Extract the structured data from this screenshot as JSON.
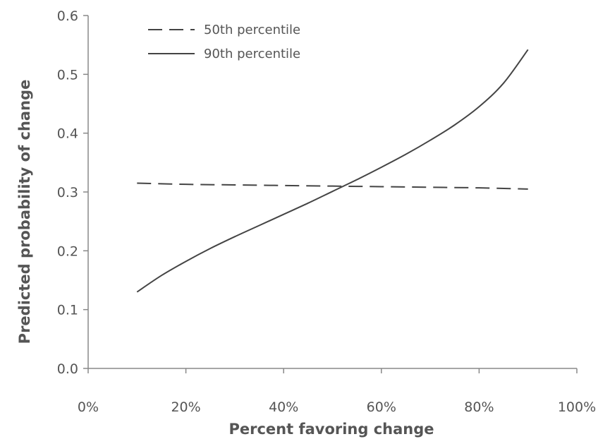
{
  "chart_data": {
    "type": "line",
    "title": "",
    "xlabel": "Percent favoring change",
    "ylabel": "Predicted probability of change",
    "xlim": [
      0,
      100
    ],
    "ylim": [
      0,
      0.6
    ],
    "x_ticks": [
      0,
      20,
      40,
      60,
      80,
      100
    ],
    "x_tick_labels": [
      "0%",
      "20%",
      "40%",
      "60%",
      "80%",
      "100%"
    ],
    "y_ticks": [
      0,
      0.1,
      0.2,
      0.3,
      0.4,
      0.5,
      0.6
    ],
    "y_tick_labels": [
      "0.0",
      "0.1",
      "0.2",
      "0.3",
      "0.4",
      "0.5",
      "0.6"
    ],
    "grid": false,
    "legend_position": "top-left",
    "series": [
      {
        "name": "50th percentile",
        "style": "dashed",
        "color": "#444444",
        "x": [
          10,
          20,
          30,
          40,
          50,
          60,
          70,
          80,
          90
        ],
        "y": [
          0.315,
          0.313,
          0.312,
          0.311,
          0.31,
          0.309,
          0.308,
          0.307,
          0.305
        ]
      },
      {
        "name": "90th percentile",
        "style": "solid",
        "color": "#444444",
        "x": [
          10,
          15,
          20,
          25,
          30,
          35,
          40,
          45,
          50,
          55,
          60,
          65,
          70,
          75,
          80,
          85,
          90
        ],
        "y": [
          0.13,
          0.158,
          0.182,
          0.204,
          0.224,
          0.243,
          0.262,
          0.281,
          0.301,
          0.321,
          0.342,
          0.364,
          0.388,
          0.414,
          0.445,
          0.485,
          0.542
        ]
      }
    ]
  }
}
